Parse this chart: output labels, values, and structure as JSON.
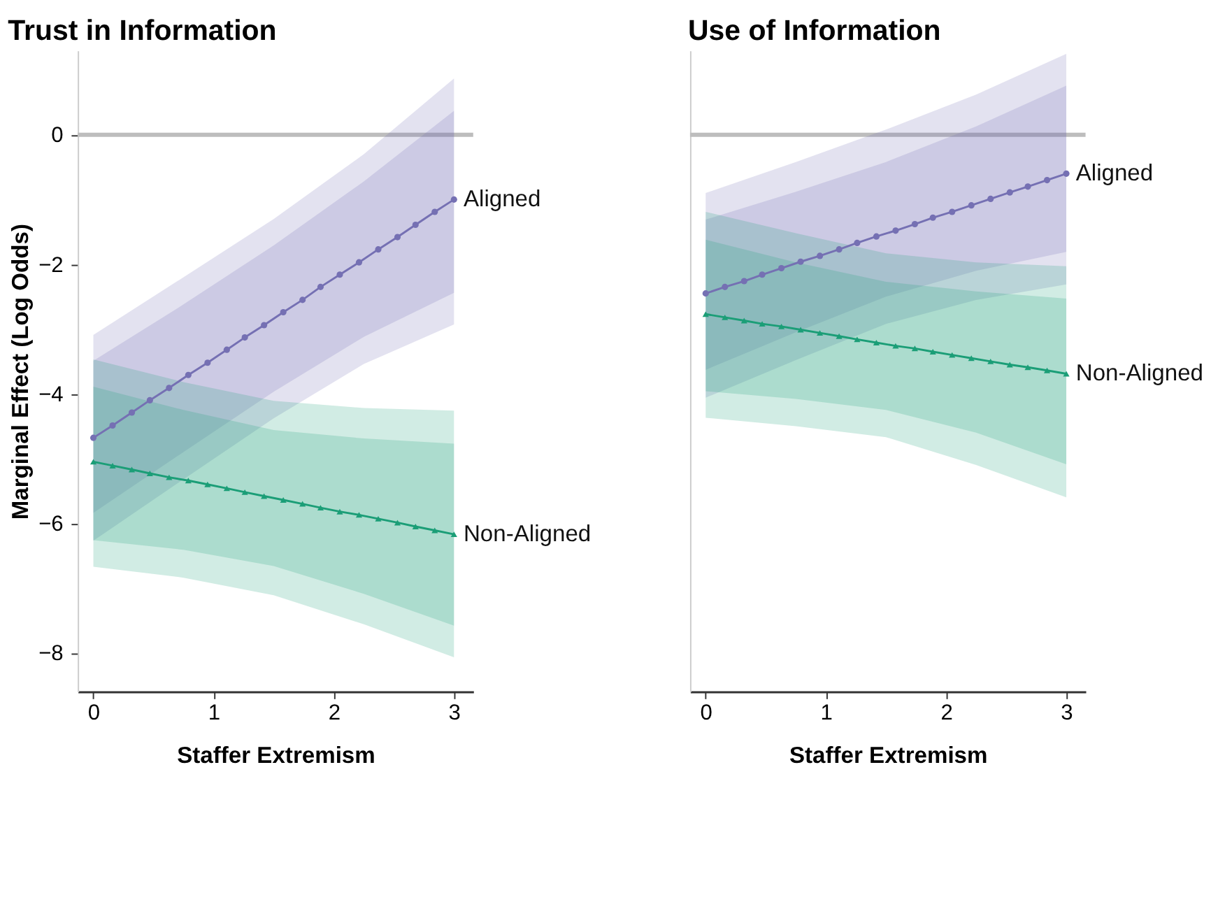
{
  "chart_data": [
    {
      "type": "line",
      "title": "Trust in Information",
      "xlabel": "Staffer Extremism",
      "ylabel": "Marginal Effect (Log Odds)",
      "x": [
        0,
        0.16,
        0.32,
        0.47,
        0.63,
        0.79,
        0.95,
        1.11,
        1.26,
        1.42,
        1.58,
        1.74,
        1.89,
        2.05,
        2.21,
        2.37,
        2.53,
        2.68,
        2.84,
        3
      ],
      "xlim": [
        -0.13,
        3.16
      ],
      "xticks": [
        0,
        1,
        2,
        3
      ],
      "ylim": [
        -8.6,
        1.3
      ],
      "yticks": [
        -8,
        -6,
        -4,
        -2,
        0
      ],
      "grid": false,
      "ref_lines": [
        {
          "axis": "y",
          "value": 0,
          "color": "#bdbdbd"
        }
      ],
      "series": [
        {
          "type": "area",
          "color": "#7570b3",
          "x": [
            0,
            0.75,
            1.5,
            2.25,
            3
          ],
          "values": [
            null,
            null,
            null,
            null,
            null
          ],
          "lower": [
            -6.27,
            -5.32,
            -4.38,
            -3.54,
            -2.93
          ],
          "upper": [
            -3.09,
            -2.2,
            -1.3,
            -0.3,
            0.87
          ]
        },
        {
          "type": "area",
          "color": "#7570b3",
          "x": [
            0,
            0.75,
            1.5,
            2.25,
            3
          ],
          "values": [
            null,
            null,
            null,
            null,
            null
          ],
          "lower": [
            -5.84,
            -4.9,
            -3.97,
            -3.12,
            -2.44
          ],
          "upper": [
            -3.49,
            -2.62,
            -1.71,
            -0.72,
            0.37
          ]
        },
        {
          "type": "area",
          "color": "#1b9e77",
          "x": [
            0,
            0.75,
            1.5,
            2.25,
            3
          ],
          "values": [
            null,
            null,
            null,
            null,
            null
          ],
          "lower": [
            -6.67,
            -6.84,
            -7.11,
            -7.56,
            -8.07
          ],
          "upper": [
            -3.47,
            -3.82,
            -4.11,
            -4.22,
            -4.26
          ]
        },
        {
          "type": "area",
          "color": "#1b9e77",
          "x": [
            0,
            0.75,
            1.5,
            2.25,
            3
          ],
          "values": [
            null,
            null,
            null,
            null,
            null
          ],
          "lower": [
            -6.26,
            -6.41,
            -6.66,
            -7.09,
            -7.58
          ],
          "upper": [
            -3.89,
            -4.25,
            -4.56,
            -4.69,
            -4.77
          ]
        },
        {
          "name": "Aligned",
          "color": "#7570b3",
          "marker": "circle",
          "values": [
            -4.68,
            -4.49,
            -4.29,
            -4.1,
            -3.91,
            -3.71,
            -3.52,
            -3.32,
            -3.13,
            -2.94,
            -2.74,
            -2.55,
            -2.35,
            -2.16,
            -1.97,
            -1.77,
            -1.58,
            -1.39,
            -1.19,
            -1.0
          ]
        },
        {
          "name": "Non-Aligned",
          "color": "#1b9e77",
          "marker": "triangle",
          "values": [
            -5.05,
            -5.11,
            -5.17,
            -5.23,
            -5.29,
            -5.34,
            -5.4,
            -5.46,
            -5.52,
            -5.58,
            -5.64,
            -5.7,
            -5.76,
            -5.82,
            -5.87,
            -5.93,
            -5.99,
            -6.05,
            -6.11,
            -6.17
          ]
        }
      ]
    },
    {
      "type": "line",
      "title": "Use of Information",
      "xlabel": "Staffer Extremism",
      "x": [
        0,
        0.16,
        0.32,
        0.47,
        0.63,
        0.79,
        0.95,
        1.11,
        1.26,
        1.42,
        1.58,
        1.74,
        1.89,
        2.05,
        2.21,
        2.37,
        2.53,
        2.68,
        2.84,
        3
      ],
      "xlim": [
        -0.13,
        3.16
      ],
      "xticks": [
        0,
        1,
        2,
        3
      ],
      "ylim": [
        -8.6,
        1.3
      ],
      "tick_labels": "x",
      "grid": false,
      "ref_lines": [
        {
          "axis": "y",
          "value": 0,
          "color": "#bdbdbd"
        }
      ],
      "series": [
        {
          "type": "area",
          "color": "#7570b3",
          "x": [
            0,
            0.75,
            1.5,
            2.25,
            3
          ],
          "values": [
            null,
            null,
            null,
            null,
            null
          ],
          "lower": [
            -4.06,
            -3.48,
            -2.92,
            -2.55,
            -2.31
          ],
          "upper": [
            -0.9,
            -0.42,
            0.08,
            0.62,
            1.25
          ]
        },
        {
          "type": "area",
          "color": "#7570b3",
          "x": [
            0,
            0.75,
            1.5,
            2.25,
            3
          ],
          "values": [
            null,
            null,
            null,
            null,
            null
          ],
          "lower": [
            -3.63,
            -3.05,
            -2.5,
            -2.1,
            -1.81
          ],
          "upper": [
            -1.31,
            -0.88,
            -0.42,
            0.13,
            0.76
          ]
        },
        {
          "type": "area",
          "color": "#1b9e77",
          "x": [
            0,
            0.75,
            1.5,
            2.25,
            3
          ],
          "values": [
            null,
            null,
            null,
            null,
            null
          ],
          "lower": [
            -4.37,
            -4.5,
            -4.67,
            -5.1,
            -5.6
          ],
          "upper": [
            -1.19,
            -1.52,
            -1.83,
            -1.97,
            -2.03
          ]
        },
        {
          "type": "area",
          "color": "#1b9e77",
          "x": [
            0,
            0.75,
            1.5,
            2.25,
            3
          ],
          "values": [
            null,
            null,
            null,
            null,
            null
          ],
          "lower": [
            -3.96,
            -4.08,
            -4.25,
            -4.6,
            -5.09
          ],
          "upper": [
            -1.62,
            -1.97,
            -2.27,
            -2.42,
            -2.53
          ]
        },
        {
          "name": "Aligned",
          "color": "#7570b3",
          "marker": "circle",
          "values": [
            -2.45,
            -2.35,
            -2.26,
            -2.16,
            -2.06,
            -1.96,
            -1.87,
            -1.77,
            -1.67,
            -1.57,
            -1.48,
            -1.38,
            -1.28,
            -1.19,
            -1.09,
            -0.99,
            -0.89,
            -0.8,
            -0.7,
            -0.6
          ]
        },
        {
          "name": "Non-Aligned",
          "color": "#1b9e77",
          "marker": "triangle",
          "values": [
            -2.77,
            -2.82,
            -2.87,
            -2.92,
            -2.96,
            -3.01,
            -3.06,
            -3.11,
            -3.16,
            -3.21,
            -3.26,
            -3.3,
            -3.35,
            -3.4,
            -3.45,
            -3.5,
            -3.55,
            -3.59,
            -3.64,
            -3.69
          ]
        }
      ]
    }
  ]
}
